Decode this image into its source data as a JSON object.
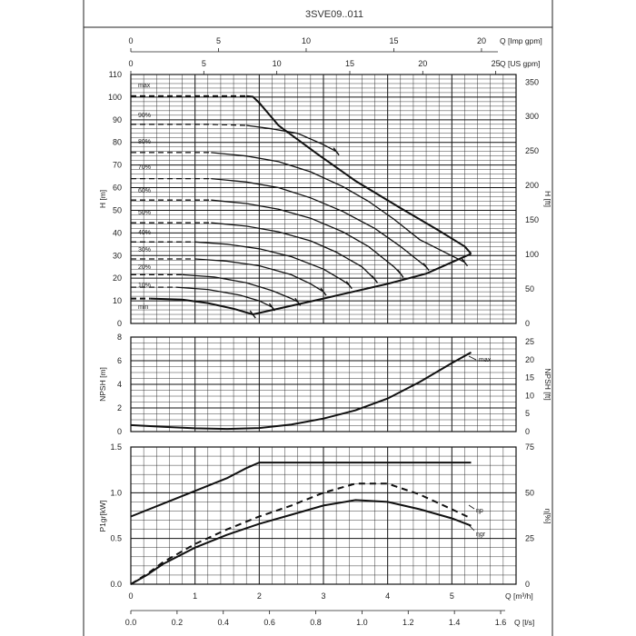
{
  "title": "3SVE09..011",
  "chart_data": [
    {
      "type": "line",
      "panel": "head",
      "ylabel": "H [m]",
      "ylabel_right": "H [ft]",
      "ylim": [
        0,
        110
      ],
      "ylim_right_ft": [
        0,
        360.9
      ],
      "yticks": [
        0,
        10,
        20,
        30,
        40,
        50,
        60,
        70,
        80,
        90,
        100,
        110
      ],
      "yticks_right": [
        0,
        50,
        100,
        150,
        200,
        250,
        300,
        350
      ],
      "top_axes": [
        {
          "label": "Q [Imp gpm]",
          "ticks": [
            0,
            5,
            10,
            15,
            20
          ],
          "max": 23.51
        },
        {
          "label": "Q [US gpm]",
          "ticks": [
            0,
            5,
            10,
            15,
            20,
            25
          ],
          "max": 28.24
        }
      ],
      "grid": true,
      "curve_labels": [
        "max",
        "90%",
        "80%",
        "70%",
        "60%",
        "50%",
        "40%",
        "30%",
        "20%",
        "10%",
        "min"
      ],
      "series": [
        {
          "name": "max",
          "dashed_to": 1.8,
          "points": [
            [
              0,
              100.5
            ],
            [
              1.8,
              100.5
            ],
            [
              1.9,
              100.2
            ],
            [
              2.0,
              97.5
            ],
            [
              2.3,
              87.5
            ],
            [
              2.9,
              75
            ],
            [
              3.5,
              63
            ],
            [
              4.2,
              51
            ],
            [
              4.8,
              41
            ],
            [
              5.2,
              34
            ],
            [
              5.3,
              30.8
            ]
          ]
        },
        {
          "name": "90%",
          "dashed_to": 1.8,
          "points": [
            [
              0,
              88
            ],
            [
              1.2,
              88
            ],
            [
              1.8,
              87.5
            ],
            [
              2.2,
              86
            ],
            [
              2.6,
              84
            ],
            [
              3.0,
              79
            ],
            [
              3.2,
              76
            ]
          ]
        },
        {
          "name": "80%",
          "dashed_to": 1.25,
          "points": [
            [
              0,
              75.5
            ],
            [
              1.25,
              75.5
            ],
            [
              1.8,
              74
            ],
            [
              2.3,
              71.5
            ],
            [
              2.8,
              67
            ],
            [
              3.3,
              60.5
            ],
            [
              3.7,
              54
            ],
            [
              4.1,
              46
            ],
            [
              4.5,
              37
            ],
            [
              5.2,
              27
            ]
          ]
        },
        {
          "name": "70%",
          "dashed_to": 1.25,
          "points": [
            [
              0,
              64
            ],
            [
              1.25,
              64
            ],
            [
              1.8,
              62.5
            ],
            [
              2.3,
              60
            ],
            [
              2.8,
              55.5
            ],
            [
              3.3,
              49.5
            ],
            [
              3.8,
              42
            ],
            [
              4.2,
              34
            ],
            [
              4.6,
              25
            ]
          ]
        },
        {
          "name": "60%",
          "dashed_to": 1.25,
          "points": [
            [
              0,
              54.5
            ],
            [
              1.25,
              54.5
            ],
            [
              1.8,
              53
            ],
            [
              2.3,
              50.5
            ],
            [
              2.8,
              46.5
            ],
            [
              3.3,
              40.5
            ],
            [
              3.7,
              34
            ],
            [
              4.1,
              25
            ],
            [
              4.2,
              22
            ]
          ]
        },
        {
          "name": "50%",
          "dashed_to": 1.25,
          "points": [
            [
              0,
              44.5
            ],
            [
              1.25,
              44.5
            ],
            [
              1.8,
              43
            ],
            [
              2.3,
              40.5
            ],
            [
              2.8,
              36.5
            ],
            [
              3.2,
              31.5
            ],
            [
              3.6,
              25
            ],
            [
              3.8,
              19.5
            ]
          ]
        },
        {
          "name": "40%",
          "dashed_to": 1.0,
          "points": [
            [
              0,
              36
            ],
            [
              1.0,
              36
            ],
            [
              1.5,
              35
            ],
            [
              2.0,
              33
            ],
            [
              2.5,
              29.5
            ],
            [
              3.0,
              24
            ],
            [
              3.3,
              19
            ],
            [
              3.4,
              17
            ]
          ]
        },
        {
          "name": "30%",
          "dashed_to": 1.0,
          "points": [
            [
              0,
              28.5
            ],
            [
              1.0,
              28.5
            ],
            [
              1.5,
              27.5
            ],
            [
              2.0,
              25.5
            ],
            [
              2.5,
              21.5
            ],
            [
              2.8,
              17.5
            ],
            [
              3.0,
              14
            ]
          ]
        },
        {
          "name": "20%",
          "dashed_to": 0.8,
          "points": [
            [
              0,
              21.5
            ],
            [
              0.8,
              21.5
            ],
            [
              1.3,
              20.5
            ],
            [
              1.8,
              18
            ],
            [
              2.2,
              14.5
            ],
            [
              2.5,
              11
            ],
            [
              2.6,
              9.5
            ]
          ]
        },
        {
          "name": "10%",
          "dashed_to": 0.7,
          "points": [
            [
              0,
              16
            ],
            [
              0.7,
              16
            ],
            [
              1.2,
              15
            ],
            [
              1.7,
              12.5
            ],
            [
              2.0,
              10
            ],
            [
              2.2,
              7.2
            ]
          ]
        },
        {
          "name": "min",
          "dashed_to": 0.3,
          "points": [
            [
              0,
              11
            ],
            [
              0.3,
              11
            ],
            [
              0.8,
              10.5
            ],
            [
              1.2,
              9
            ],
            [
              1.6,
              6.5
            ],
            [
              1.9,
              4
            ]
          ]
        },
        {
          "name": "limit",
          "points": [
            [
              1.9,
              4
            ],
            [
              3.0,
              11
            ],
            [
              4.0,
              17.5
            ],
            [
              4.6,
              22
            ],
            [
              5.3,
              30.8
            ]
          ]
        }
      ]
    },
    {
      "type": "line",
      "panel": "npsh",
      "ylabel": "NPSH [m]",
      "ylabel_right": "NPSH [ft]",
      "ylim": [
        0,
        8
      ],
      "yticks": [
        0,
        2,
        4,
        6,
        8
      ],
      "yticks_right": [
        0,
        5,
        10,
        15,
        20,
        25
      ],
      "grid": true,
      "curve_labels": [
        "max"
      ],
      "series": [
        {
          "name": "max",
          "points": [
            [
              0,
              0.55
            ],
            [
              0.5,
              0.4
            ],
            [
              1.0,
              0.28
            ],
            [
              1.5,
              0.22
            ],
            [
              2.0,
              0.3
            ],
            [
              2.5,
              0.6
            ],
            [
              3.0,
              1.1
            ],
            [
              3.5,
              1.8
            ],
            [
              4.0,
              2.8
            ],
            [
              4.5,
              4.2
            ],
            [
              5.0,
              5.8
            ],
            [
              5.3,
              6.7
            ]
          ]
        }
      ]
    },
    {
      "type": "line",
      "panel": "power-efficiency",
      "ylabel": "P1gr[kW]",
      "ylabel_right": "η[%]",
      "ylim": [
        0,
        1.5
      ],
      "yticks": [
        0.0,
        0.5,
        1.0,
        1.5
      ],
      "yticks_right": [
        0,
        25,
        50,
        75
      ],
      "grid": true,
      "bottom_axes": [
        {
          "label": "Q [m³/h]",
          "ticks": [
            0,
            1,
            2,
            3,
            4,
            5
          ],
          "max": 6.42
        },
        {
          "label": "Q [l/s]",
          "ticks": [
            0.0,
            0.2,
            0.4,
            0.6,
            0.8,
            1.0,
            1.2,
            1.4,
            1.6
          ],
          "max": 1.783
        }
      ],
      "curve_labels": [
        "ηp",
        "ηgr"
      ],
      "series": [
        {
          "name": "P1gr",
          "points": [
            [
              0,
              0.74
            ],
            [
              0.5,
              0.88
            ],
            [
              1.0,
              1.02
            ],
            [
              1.5,
              1.16
            ],
            [
              1.8,
              1.27
            ],
            [
              2.0,
              1.33
            ],
            [
              5.3,
              1.33
            ]
          ]
        },
        {
          "name": "ηp",
          "dashed": true,
          "points": [
            [
              0,
              0
            ],
            [
              0.25,
              5.5
            ],
            [
              0.5,
              12
            ],
            [
              1.0,
              22
            ],
            [
              1.5,
              30
            ],
            [
              2.0,
              37
            ],
            [
              2.5,
              43
            ],
            [
              3.0,
              50
            ],
            [
              3.5,
              55
            ],
            [
              4.0,
              55
            ],
            [
              4.5,
              49
            ],
            [
              5.0,
              41
            ],
            [
              5.3,
              36
            ]
          ]
        },
        {
          "name": "ηgr",
          "points": [
            [
              0,
              0
            ],
            [
              0.25,
              5
            ],
            [
              0.5,
              11
            ],
            [
              1.0,
              20
            ],
            [
              1.5,
              27
            ],
            [
              2.0,
              33
            ],
            [
              2.5,
              38
            ],
            [
              3.0,
              43
            ],
            [
              3.5,
              46
            ],
            [
              4.0,
              45
            ],
            [
              4.5,
              41
            ],
            [
              5.0,
              36
            ],
            [
              5.3,
              32
            ]
          ]
        }
      ]
    }
  ]
}
